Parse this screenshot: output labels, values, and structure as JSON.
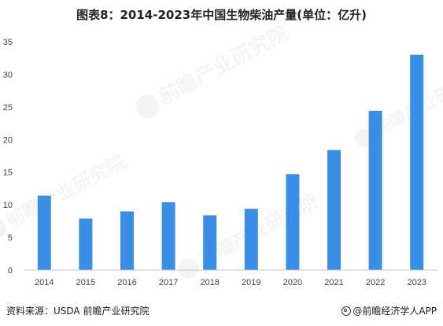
{
  "chart_data": {
    "type": "bar",
    "title": "图表8：2014-2023年中国生物柴油产量(单位：亿升)",
    "categories": [
      "2014",
      "2015",
      "2016",
      "2017",
      "2018",
      "2019",
      "2020",
      "2021",
      "2022",
      "2023"
    ],
    "values": [
      11.4,
      7.9,
      9.0,
      10.4,
      8.4,
      9.4,
      14.7,
      18.4,
      24.4,
      33.0
    ],
    "xlabel": "",
    "ylabel": "",
    "ylim": [
      0,
      35
    ],
    "yticks": [
      "0",
      "5",
      "10",
      "15",
      "20",
      "25",
      "30",
      "35"
    ],
    "grid": false,
    "legend": "none",
    "bar_color": "#3a8ee6"
  },
  "footer": {
    "source": "资料来源：USDA 前瞻产业研究院",
    "brand": "@前瞻经济学人APP",
    "brand_icon": "brand-logo-icon"
  },
  "watermark": {
    "text": "前瞻产业研究院"
  }
}
